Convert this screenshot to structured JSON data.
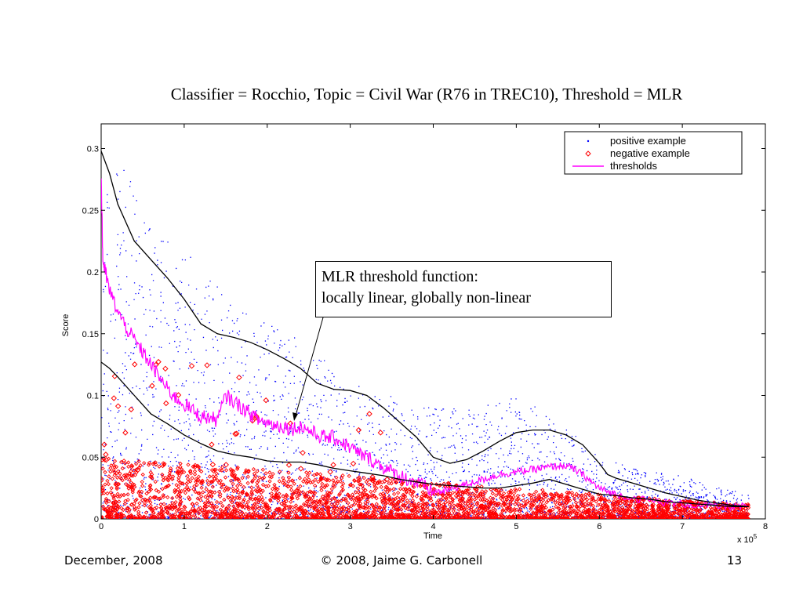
{
  "slide_title": "Classifier = Rocchio,  Topic = Civil War (R76 in TREC10), Threshold = MLR",
  "footer": {
    "date": "December, 2008",
    "copyright": "© 2008, Jaime G. Carbonell",
    "page_number": "13"
  },
  "callout": {
    "line1": "MLR threshold function:",
    "line2": "locally linear, globally non-linear"
  },
  "chart_data": {
    "type": "scatter",
    "title": "",
    "xlabel": "Time",
    "ylabel": "Score",
    "x_multiplier_label": "x 10^5",
    "x_multiplier_base": "x 10",
    "x_multiplier_exp": "5",
    "xlim": [
      0,
      8
    ],
    "ylim": [
      0,
      0.32
    ],
    "x_ticks": [
      0,
      1,
      2,
      3,
      4,
      5,
      6,
      7,
      8
    ],
    "x_tick_labels": [
      "0",
      "1",
      "2",
      "3",
      "4",
      "5",
      "6",
      "7",
      "8"
    ],
    "y_ticks": [
      0,
      0.05,
      0.1,
      0.15,
      0.2,
      0.25,
      0.3
    ],
    "y_tick_labels": [
      "0",
      "0.05",
      "0.1",
      "0.15",
      "0.2",
      "0.25",
      "0.3"
    ],
    "grid": false,
    "legend_position": "top-right",
    "legend": [
      {
        "label": "positive example",
        "marker": "dot",
        "color": "#0000ff"
      },
      {
        "label": "negative example",
        "marker": "diamond",
        "color": "#ff0000"
      },
      {
        "label": "thresholds",
        "marker": "line",
        "color": "#ff00ff"
      }
    ],
    "colors": {
      "positive": "#0000ff",
      "negative": "#ff0000",
      "threshold": "#ff00ff",
      "envelope": "#000000"
    },
    "series": [
      {
        "name": "thresholds",
        "x": [
          0,
          0.02,
          0.05,
          0.1,
          0.2,
          0.3,
          0.4,
          0.5,
          0.6,
          0.7,
          0.8,
          0.9,
          1.0,
          1.1,
          1.2,
          1.3,
          1.4,
          1.5,
          1.6,
          1.7,
          1.8,
          1.9,
          2.0,
          2.1,
          2.2,
          2.3,
          2.4,
          2.5,
          2.6,
          2.7,
          2.8,
          2.9,
          3.0,
          3.1,
          3.2,
          3.3,
          3.4,
          3.5,
          3.6,
          3.7,
          3.8,
          3.9,
          4.0,
          4.1,
          4.2,
          4.3,
          4.4,
          4.5,
          4.6,
          4.7,
          4.8,
          4.9,
          5.0,
          5.1,
          5.2,
          5.3,
          5.4,
          5.5,
          5.6,
          5.7,
          5.8,
          5.9,
          6.0,
          6.1,
          6.2,
          6.4,
          6.6,
          6.8,
          7.0,
          7.2,
          7.4,
          7.6,
          7.8
        ],
        "y": [
          0.28,
          0.21,
          0.2,
          0.185,
          0.168,
          0.155,
          0.145,
          0.135,
          0.125,
          0.115,
          0.105,
          0.098,
          0.093,
          0.088,
          0.083,
          0.082,
          0.08,
          0.1,
          0.095,
          0.09,
          0.085,
          0.08,
          0.078,
          0.076,
          0.075,
          0.073,
          0.075,
          0.072,
          0.068,
          0.066,
          0.066,
          0.062,
          0.058,
          0.053,
          0.05,
          0.046,
          0.042,
          0.038,
          0.035,
          0.032,
          0.029,
          0.026,
          0.022,
          0.022,
          0.024,
          0.026,
          0.028,
          0.03,
          0.032,
          0.034,
          0.036,
          0.037,
          0.038,
          0.039,
          0.04,
          0.041,
          0.042,
          0.043,
          0.043,
          0.04,
          0.036,
          0.03,
          0.025,
          0.022,
          0.02,
          0.017,
          0.015,
          0.013,
          0.012,
          0.011,
          0.01,
          0.01,
          0.01
        ]
      },
      {
        "name": "",
        "x": [
          0,
          0.1,
          0.2,
          0.4,
          0.6,
          0.8,
          1.0,
          1.2,
          1.4,
          1.6,
          1.8,
          2.0,
          2.2,
          2.4,
          2.6,
          2.8,
          3.0,
          3.2,
          3.4,
          3.6,
          3.8,
          4.0,
          4.2,
          4.4,
          4.6,
          4.8,
          5.0,
          5.2,
          5.4,
          5.6,
          5.8,
          6.0,
          6.1,
          6.2,
          6.4,
          6.6,
          6.8,
          7.0,
          7.2,
          7.4,
          7.6,
          7.8
        ],
        "y": [
          0.298,
          0.28,
          0.255,
          0.225,
          0.21,
          0.195,
          0.178,
          0.158,
          0.15,
          0.147,
          0.143,
          0.137,
          0.13,
          0.122,
          0.11,
          0.105,
          0.104,
          0.1,
          0.09,
          0.078,
          0.066,
          0.05,
          0.045,
          0.048,
          0.055,
          0.063,
          0.07,
          0.072,
          0.072,
          0.068,
          0.06,
          0.045,
          0.036,
          0.033,
          0.029,
          0.025,
          0.021,
          0.018,
          0.015,
          0.013,
          0.011,
          0.01
        ]
      },
      {
        "name": "",
        "x": [
          0,
          0.1,
          0.2,
          0.4,
          0.6,
          0.8,
          1.0,
          1.2,
          1.4,
          1.6,
          1.8,
          2.0,
          2.2,
          2.4,
          2.6,
          2.8,
          3.0,
          3.2,
          3.4,
          3.6,
          3.8,
          4.0,
          4.2,
          4.4,
          4.6,
          4.8,
          5.0,
          5.2,
          5.4,
          5.6,
          5.8,
          6.0,
          6.2,
          6.4,
          6.6,
          6.8,
          7.0,
          7.2,
          7.4,
          7.6,
          7.8
        ],
        "y": [
          0.127,
          0.122,
          0.115,
          0.1,
          0.085,
          0.077,
          0.068,
          0.061,
          0.055,
          0.052,
          0.05,
          0.047,
          0.046,
          0.046,
          0.044,
          0.041,
          0.039,
          0.037,
          0.035,
          0.032,
          0.03,
          0.028,
          0.027,
          0.026,
          0.025,
          0.025,
          0.027,
          0.029,
          0.032,
          0.028,
          0.024,
          0.02,
          0.019,
          0.017,
          0.016,
          0.014,
          0.013,
          0.012,
          0.011,
          0.01,
          0.01
        ]
      }
    ],
    "scatter_density": {
      "positive_example": {
        "x": [
          0,
          0.5,
          1,
          1.5,
          2,
          2.5,
          3,
          3.5,
          4,
          4.5,
          5,
          5.5,
          6,
          6.5,
          7,
          7.5,
          7.8
        ],
        "y_low": [
          0,
          0,
          0,
          0,
          0,
          0,
          0,
          0,
          0,
          0,
          0,
          0,
          0,
          0,
          0,
          0,
          0
        ],
        "y_high": [
          0.31,
          0.26,
          0.22,
          0.18,
          0.16,
          0.14,
          0.11,
          0.1,
          0.09,
          0.09,
          0.1,
          0.08,
          0.05,
          0.04,
          0.035,
          0.025,
          0.02
        ]
      },
      "negative_example": {
        "x": [
          0,
          1,
          2,
          3,
          4,
          5,
          6,
          7,
          7.8
        ],
        "y_low": [
          0,
          0,
          0,
          0,
          0,
          0,
          0,
          0,
          0
        ],
        "y_high": [
          0.05,
          0.045,
          0.04,
          0.035,
          0.03,
          0.025,
          0.02,
          0.015,
          0.012
        ]
      }
    }
  }
}
